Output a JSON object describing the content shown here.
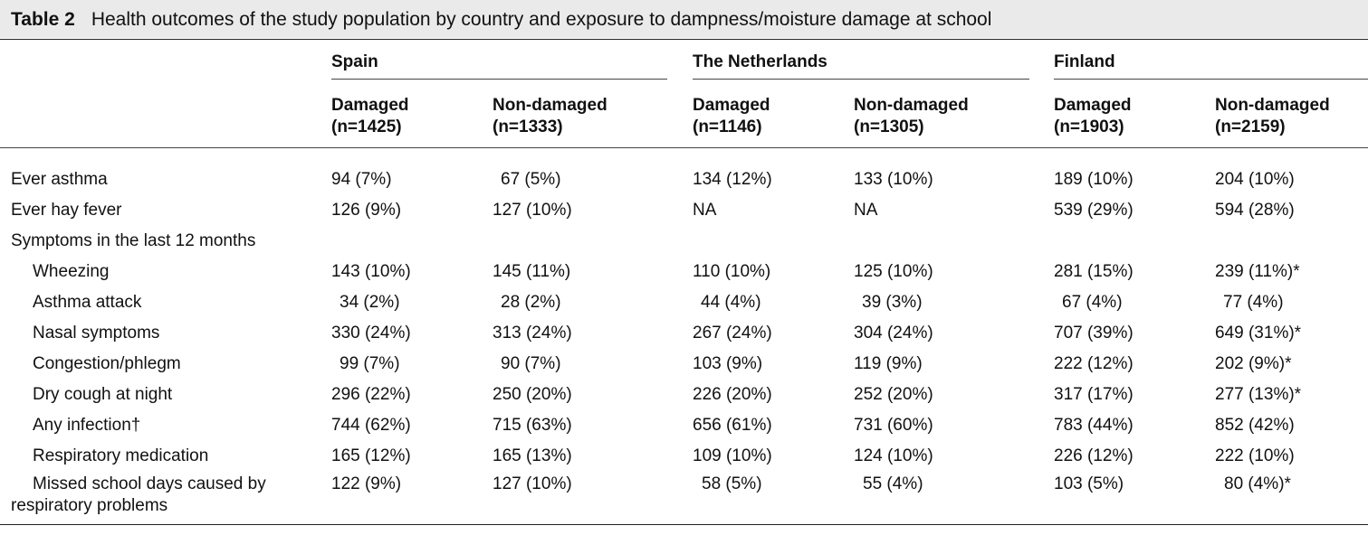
{
  "caption": {
    "label": "Table 2",
    "title": "Health outcomes of the study population by country and exposure to dampness/moisture damage at school"
  },
  "countries": [
    "Spain",
    "The Netherlands",
    "Finland"
  ],
  "subheaders": [
    {
      "line1": "Damaged",
      "line2": "(n=1425)"
    },
    {
      "line1": "Non-damaged",
      "line2": "(n=1333)"
    },
    {
      "line1": "Damaged",
      "line2": "(n=1146)"
    },
    {
      "line1": "Non-damaged",
      "line2": "(n=1305)"
    },
    {
      "line1": "Damaged",
      "line2": "(n=1903)"
    },
    {
      "line1": "Non-damaged",
      "line2": "(n=2159)"
    }
  ],
  "rows": [
    {
      "label": "Ever asthma",
      "cells": [
        "94 (7%)",
        "67 (5%)",
        "134 (12%)",
        "133 (10%)",
        "189 (10%)",
        "204 (10%)"
      ]
    },
    {
      "label": "Ever hay fever",
      "cells": [
        "126 (9%)",
        "127 (10%)",
        "NA",
        "NA",
        "539 (29%)",
        "594 (28%)"
      ]
    },
    {
      "label": "Symptoms in the last 12 months",
      "cells": [
        "",
        "",
        "",
        "",
        "",
        ""
      ]
    },
    {
      "label": "Wheezing",
      "cells": [
        "143 (10%)",
        "145 (11%)",
        "110 (10%)",
        "125 (10%)",
        "281 (15%)",
        "239 (11%)*"
      ]
    },
    {
      "label": "Asthma attack",
      "cells": [
        "34 (2%)",
        "28 (2%)",
        "44 (4%)",
        "39 (3%)",
        "67 (4%)",
        "77 (4%)"
      ]
    },
    {
      "label": "Nasal symptoms",
      "cells": [
        "330 (24%)",
        "313 (24%)",
        "267 (24%)",
        "304 (24%)",
        "707 (39%)",
        "649 (31%)*"
      ]
    },
    {
      "label": "Congestion/phlegm",
      "cells": [
        "99 (7%)",
        "90 (7%)",
        "103 (9%)",
        "119 (9%)",
        "222 (12%)",
        "202 (9%)*"
      ]
    },
    {
      "label": "Dry cough at night",
      "cells": [
        "296 (22%)",
        "250 (20%)",
        "226 (20%)",
        "252 (20%)",
        "317 (17%)",
        "277 (13%)*"
      ]
    },
    {
      "label": "Any infection†",
      "cells": [
        "744 (62%)",
        "715 (63%)",
        "656 (61%)",
        "731 (60%)",
        "783 (44%)",
        "852 (42%)"
      ]
    },
    {
      "label": "Respiratory medication",
      "cells": [
        "165 (12%)",
        "165 (13%)",
        "109 (10%)",
        "124 (10%)",
        "226 (12%)",
        "222 (10%)"
      ]
    }
  ],
  "last_row": {
    "label_line1": "Missed school days caused by",
    "label_line2": "respiratory problems",
    "cells": [
      "122 (9%)",
      "127 (10%)",
      "58 (5%)",
      "55 (4%)",
      "103 (5%)",
      "80 (4%)*"
    ]
  }
}
